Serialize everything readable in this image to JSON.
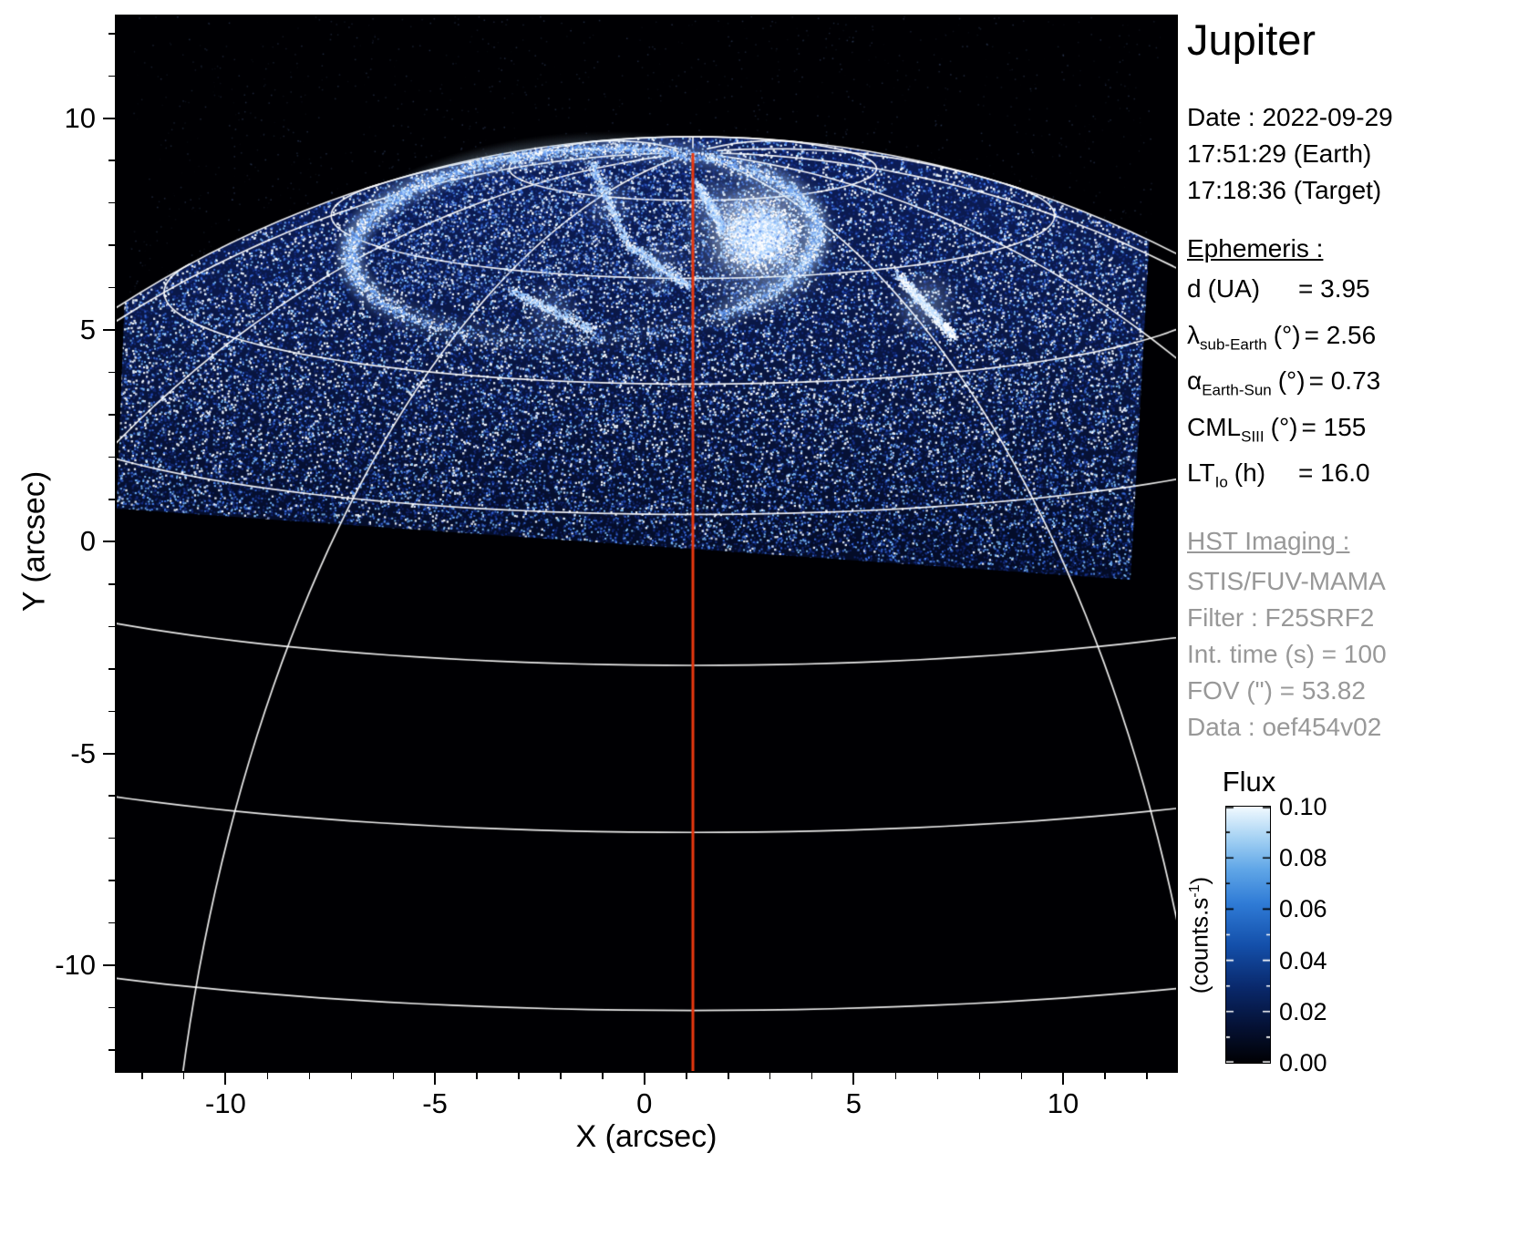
{
  "title": "Jupiter",
  "observation": {
    "date_line": "Date : 2022-09-29",
    "earth_time": "17:51:29 (Earth)",
    "target_time": "17:18:36 (Target)"
  },
  "ephemeris": {
    "heading": "Ephemeris :",
    "rows": [
      {
        "sym": "d",
        "sub": "",
        "unit": "(UA)",
        "value": "= 3.95"
      },
      {
        "sym": "λ",
        "sub": "sub-Earth",
        "unit": "(°)",
        "value": "= 2.56"
      },
      {
        "sym": "α",
        "sub": "Earth-Sun",
        "unit": "(°)",
        "value": "= 0.73"
      },
      {
        "sym": "CML",
        "sub": "SIII",
        "unit": "(°)",
        "value": "= 155"
      },
      {
        "sym": "LT",
        "sub": "Io",
        "unit": "(h)",
        "value": "= 16.0"
      }
    ]
  },
  "hst": {
    "heading": "HST Imaging :",
    "lines": [
      "STIS/FUV-MAMA",
      "Filter : F25SRF2",
      "Int. time (s) = 100",
      "FOV (\") = 53.82",
      "Data : oef454v02"
    ]
  },
  "colorbar": {
    "title": "Flux",
    "unit": {
      "pre": "(counts.s",
      "sup": "-1",
      "post": ")"
    },
    "ticks": [
      "0.10",
      "0.08",
      "0.06",
      "0.04",
      "0.02",
      "0.00"
    ]
  },
  "colors": {
    "background": "#ffffff",
    "plot_background": "#000000",
    "graticule": "#ffffff",
    "central_meridian": "#e8380f",
    "aurora_bright": "#eef8ff",
    "disk_blue": "#12358c",
    "secondary_text": "#989898"
  },
  "chart_data": {
    "type": "heatmap",
    "title": "Jupiter",
    "xlabel": "X (arcsec)",
    "ylabel": "Y (arcsec)",
    "xlim": [
      -12.6,
      12.7
    ],
    "ylim": [
      -12.5,
      12.4
    ],
    "xticks": [
      -10,
      -5,
      0,
      5,
      10
    ],
    "yticks": [
      -10,
      -5,
      0,
      5,
      10
    ],
    "colorbar": {
      "label": "Flux",
      "unit": "counts.s-1",
      "min": 0.0,
      "max": 0.1,
      "tick_interval": 0.02
    },
    "overlays": {
      "central_meridian_line": {
        "color": "#e8380f",
        "x_arcsec": 1.15
      },
      "graticule": "white planetary latitude-longitude grid over full disk",
      "auroral_oval_center_arcsec": [
        -1.5,
        7.0
      ],
      "detector_field_edge_y_arcsec": 0.3
    },
    "content": "Far-UV image of Jupiter's north polar region: bright auroral oval and polar emissions over blue disk airglow inside tilted STIS detector footprint, black sky elsewhere"
  }
}
